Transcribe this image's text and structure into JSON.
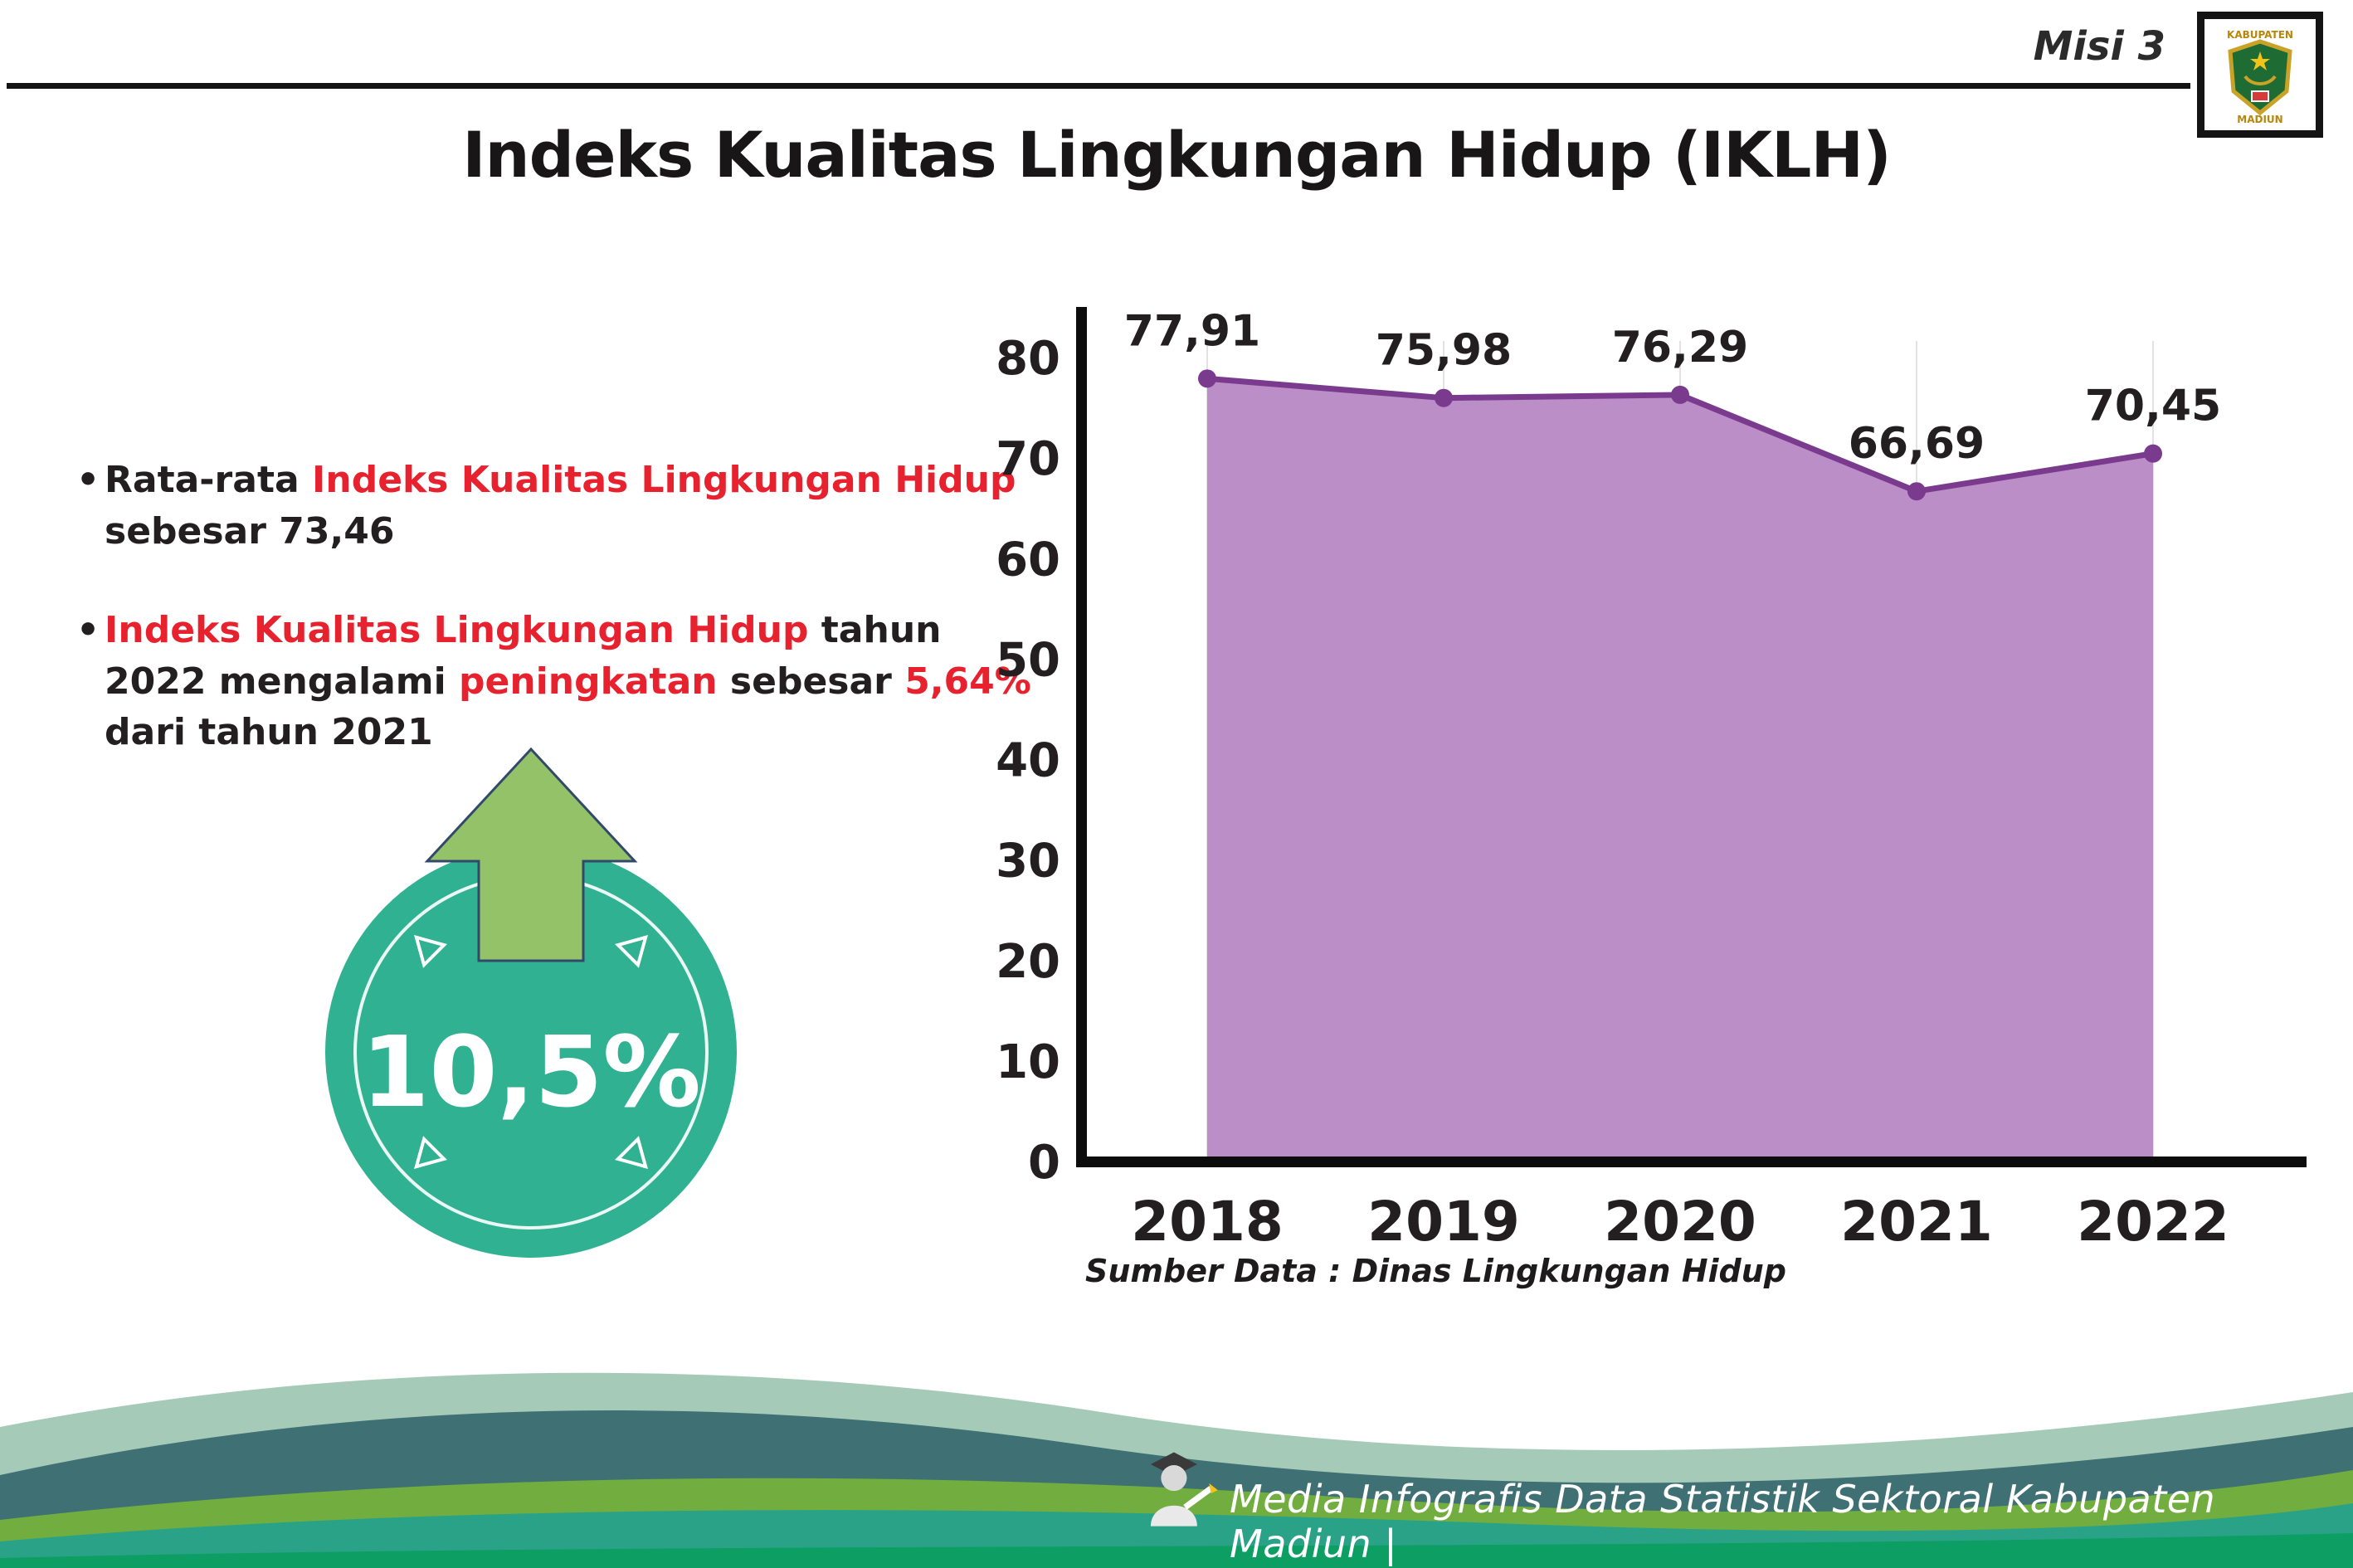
{
  "header": {
    "misi": "Misi 3",
    "title": "Indeks Kualitas Lingkungan Hidup (IKLH)",
    "logo": {
      "name": "kabupaten-madiun-crest",
      "line1": "KABUPATEN",
      "line2": "MADIUN"
    }
  },
  "bullets": [
    {
      "segments": [
        {
          "text": "Rata-rata ",
          "red": false
        },
        {
          "text": "Indeks Kualitas Lingkungan Hidup",
          "red": true
        },
        {
          "text": " sebesar 73,46",
          "red": false
        }
      ]
    },
    {
      "segments": [
        {
          "text": "Indeks Kualitas Lingkungan Hidup",
          "red": true
        },
        {
          "text": " tahun 2022 mengalami ",
          "red": false
        },
        {
          "text": "peningkatan",
          "red": true
        },
        {
          "text": " sebesar ",
          "red": false
        },
        {
          "text": "5,64%",
          "red": true
        },
        {
          "text": " dari tahun 2021",
          "red": false
        }
      ]
    }
  ],
  "highlight": {
    "value": "10,5%",
    "circle_color": "#2fb192",
    "arrow_color": "#94c268"
  },
  "chart_data": {
    "type": "area",
    "title": "",
    "categories": [
      "2018",
      "2019",
      "2020",
      "2021",
      "2022"
    ],
    "values": [
      77.91,
      75.98,
      76.29,
      66.69,
      70.45
    ],
    "value_labels": [
      "77,91",
      "75,98",
      "76,29",
      "66,69",
      "70,45"
    ],
    "ylim": [
      0,
      80
    ],
    "ytick_step": 10,
    "grid": true,
    "legend": "none",
    "fill_color": "#bb8ec8",
    "line_color": "#7a3b8e",
    "axis_color": "#0c0c0c",
    "label_color": "#231f20"
  },
  "source_note": "Sumber Data : Dinas Lingkungan Hidup",
  "footer": {
    "credit": "Media Infografis Data Statistik Sektoral Kabupaten Madiun |"
  }
}
